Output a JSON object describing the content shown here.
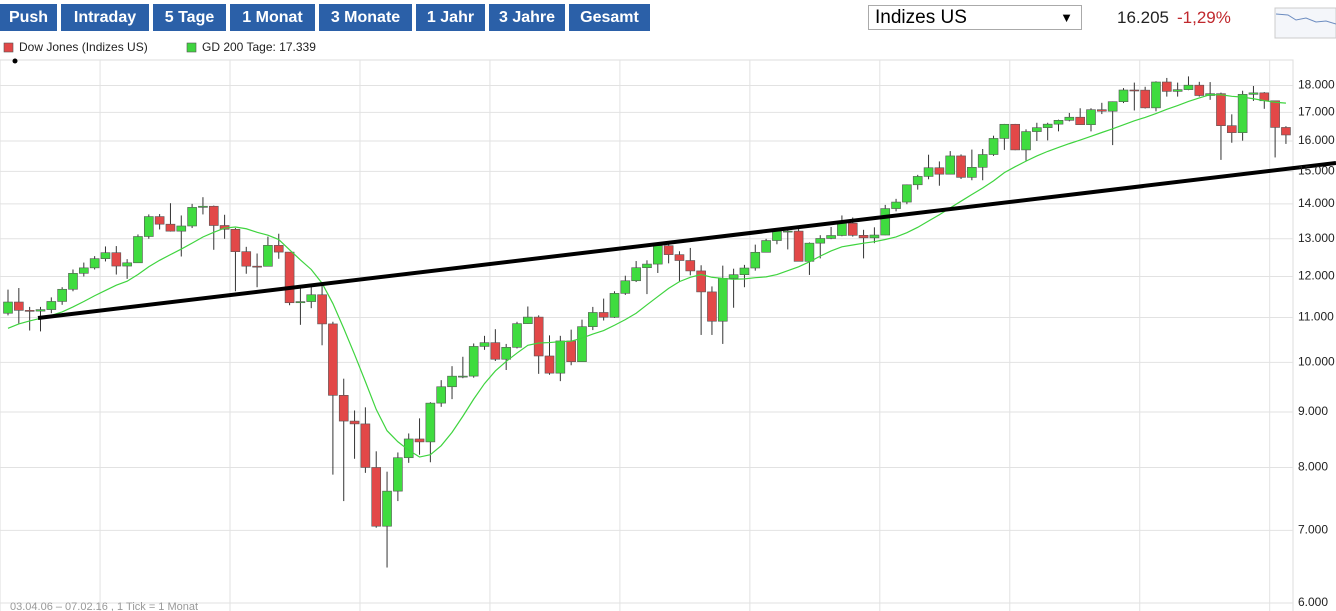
{
  "toolbar": {
    "buttons": [
      "Push",
      "Intraday",
      "5 Tage",
      "1 Monat",
      "3 Monate",
      "1 Jahr",
      "3 Jahre",
      "Gesamt"
    ]
  },
  "selector": {
    "value": "Indizes US"
  },
  "quote": {
    "price": "16.205",
    "change": "-1,29%"
  },
  "chart_data": {
    "type": "candlestick",
    "name": "Dow Jones (Indizes US)",
    "color_up": "#3fdc3f",
    "color_down": "#e24848",
    "caption": "03.04.06 – 07.02.16 , 1 Tick = 1 Monat",
    "log_scale": true,
    "grid": true,
    "ylim": [
      5950,
      19000
    ],
    "yticks": [
      {
        "value": 6000,
        "label": "6.000"
      },
      {
        "value": 7000,
        "label": "7.000"
      },
      {
        "value": 8000,
        "label": "8.000"
      },
      {
        "value": 9000,
        "label": "9.000"
      },
      {
        "value": 10000,
        "label": "10.000"
      },
      {
        "value": 11000,
        "label": "11.000"
      },
      {
        "value": 12000,
        "label": "12.000"
      },
      {
        "value": 13000,
        "label": "13.000"
      },
      {
        "value": 14000,
        "label": "14.000"
      },
      {
        "value": 15000,
        "label": "15.000"
      },
      {
        "value": 16000,
        "label": "16.000"
      },
      {
        "value": 17000,
        "label": "17.000"
      },
      {
        "value": 18000,
        "label": "18.000"
      }
    ],
    "open": [
      11100,
      11367,
      11168,
      11150,
      11186,
      11381,
      11679,
      12081,
      12222,
      12463,
      12622,
      12269,
      12354,
      13063,
      13628,
      13409,
      13212,
      13358,
      13896,
      13930,
      13372,
      13265,
      12650,
      12266,
      12263,
      12820,
      12638,
      11350,
      11378,
      11544,
      10851,
      9325,
      8829,
      8776,
      8001,
      7063,
      7609,
      8168,
      8500,
      8447,
      9172,
      9496,
      9712,
      9713,
      10345,
      10428,
      10067,
      10325,
      10857,
      11009,
      10137,
      9774,
      10466,
      10015,
      10788,
      11118,
      11006,
      11578,
      11892,
      12226,
      12320,
      12811,
      12570,
      12414,
      12143,
      11614,
      10913,
      11955,
      12046,
      12218,
      12633,
      12952,
      13212,
      13214,
      12393,
      12880,
      13009,
      13091,
      13437,
      13096,
      13026,
      13104,
      13861,
      14054,
      14579,
      14840,
      15116,
      14910,
      15500,
      14810,
      15130,
      15546,
      16086,
      16577,
      15699,
      16322,
      16458,
      16581,
      16717,
      16827,
      16563,
      17098,
      17043,
      17391,
      17828,
      17823,
      17165,
      18133,
      17776,
      17841,
      18011,
      17620,
      17690,
      16528,
      16285,
      17664,
      17720,
      17425,
      16466
    ],
    "high": [
      11670,
      11710,
      11250,
      11250,
      11480,
      11730,
      12180,
      12360,
      12530,
      12790,
      12800,
      12450,
      13120,
      13690,
      13700,
      14020,
      13660,
      14000,
      14200,
      13950,
      13680,
      13300,
      12780,
      12600,
      13060,
      13140,
      12640,
      11750,
      11800,
      11790,
      10900,
      9660,
      9030,
      9090,
      8280,
      7930,
      8260,
      8600,
      8880,
      9190,
      9630,
      9920,
      10120,
      10410,
      10580,
      10730,
      10400,
      10900,
      11260,
      11050,
      10590,
      10580,
      10720,
      10950,
      11250,
      11450,
      11630,
      12020,
      12400,
      12420,
      12880,
      12880,
      12660,
      12750,
      12290,
      11750,
      12280,
      12200,
      12300,
      12840,
      13000,
      13300,
      13340,
      13340,
      12900,
      13100,
      13330,
      13660,
      13600,
      13250,
      13320,
      13970,
      14150,
      14590,
      14890,
      15540,
      15320,
      15660,
      15550,
      15710,
      15730,
      16180,
      16590,
      16590,
      16400,
      16630,
      16630,
      16740,
      16980,
      17150,
      17150,
      17350,
      17400,
      17900,
      18110,
      17950,
      18160,
      18290,
      18110,
      18350,
      18140,
      18130,
      17730,
      16930,
      17800,
      17980,
      17750,
      17420,
      16510
    ],
    "low": [
      11050,
      10860,
      10700,
      10680,
      11100,
      11300,
      11630,
      12000,
      12180,
      12390,
      12050,
      11940,
      12350,
      13000,
      13260,
      13200,
      12520,
      13300,
      13690,
      12700,
      13000,
      11630,
      12070,
      11730,
      12260,
      12460,
      11290,
      10830,
      11220,
      10370,
      7880,
      7450,
      8150,
      7910,
      7040,
      6470,
      7450,
      8080,
      8220,
      8090,
      9100,
      9250,
      9670,
      9680,
      10270,
      10030,
      9840,
      10300,
      10850,
      9760,
      9740,
      9610,
      9940,
      10010,
      10710,
      10930,
      10990,
      11540,
      11860,
      11560,
      12090,
      12340,
      11860,
      12030,
      10600,
      10600,
      10400,
      11230,
      11730,
      12150,
      12630,
      12850,
      12710,
      12390,
      12040,
      12470,
      12990,
      13070,
      13060,
      12470,
      12880,
      13100,
      13780,
      13990,
      14430,
      14750,
      14550,
      14900,
      14760,
      14720,
      14720,
      15500,
      15700,
      15690,
      15340,
      16000,
      16020,
      16330,
      16680,
      16560,
      16330,
      16940,
      15860,
      17340,
      17070,
      17140,
      17040,
      17580,
      17580,
      17820,
      17580,
      17460,
      15370,
      15940,
      16010,
      17420,
      17130,
      15450,
      15900
    ],
    "close": [
      11367,
      11168,
      11150,
      11186,
      11381,
      11679,
      12081,
      12222,
      12463,
      12622,
      12269,
      12354,
      13063,
      13628,
      13409,
      13212,
      13358,
      13896,
      13930,
      13372,
      13265,
      12650,
      12266,
      12263,
      12820,
      12638,
      11350,
      11378,
      11544,
      10851,
      9325,
      8829,
      8776,
      8001,
      7063,
      7609,
      8168,
      8500,
      8447,
      9172,
      9496,
      9712,
      9713,
      10345,
      10428,
      10067,
      10325,
      10857,
      11009,
      10137,
      9774,
      10466,
      10015,
      10788,
      11118,
      11006,
      11578,
      11892,
      12226,
      12320,
      12811,
      12570,
      12414,
      12143,
      11614,
      10913,
      11955,
      12046,
      12218,
      12633,
      12952,
      13212,
      13214,
      12393,
      12880,
      13009,
      13091,
      13437,
      13096,
      13026,
      13104,
      13861,
      14054,
      14579,
      14840,
      15116,
      14910,
      15500,
      14810,
      15130,
      15546,
      16086,
      16577,
      15699,
      16322,
      16458,
      16581,
      16717,
      16827,
      16563,
      17098,
      17043,
      17391,
      17828,
      17823,
      17165,
      18133,
      17776,
      17841,
      18011,
      17620,
      17690,
      16528,
      16285,
      17664,
      17720,
      17425,
      16466,
      16205
    ],
    "ma": {
      "name": "GD 200 Tage: 17.339",
      "color": "#3fd43f",
      "values": [
        10750,
        10850,
        10920,
        10980,
        11050,
        11130,
        11250,
        11380,
        11520,
        11650,
        11780,
        11880,
        12050,
        12250,
        12420,
        12570,
        12720,
        12880,
        13050,
        13180,
        13300,
        13330,
        13280,
        13180,
        13100,
        12980,
        12700,
        12430,
        12180,
        11830,
        11330,
        10750,
        10170,
        9600,
        9050,
        8650,
        8450,
        8300,
        8180,
        8220,
        8380,
        8620,
        8920,
        9250,
        9560,
        9820,
        10020,
        10200,
        10370,
        10420,
        10430,
        10450,
        10460,
        10530,
        10620,
        10700,
        10820,
        10950,
        11100,
        11300,
        11500,
        11700,
        11870,
        11980,
        12050,
        11980,
        11950,
        11930,
        11940,
        11970,
        11990,
        12050,
        12150,
        12250,
        12380,
        12530,
        12670,
        12780,
        12830,
        12880,
        12920,
        12980,
        13050,
        13170,
        13320,
        13500,
        13680,
        13880,
        14080,
        14280,
        14480,
        14700,
        14960,
        15150,
        15330,
        15500,
        15650,
        15780,
        15910,
        16030,
        16160,
        16290,
        16420,
        16560,
        16700,
        16820,
        16960,
        17110,
        17250,
        17400,
        17530,
        17650,
        17650,
        17590,
        17560,
        17500,
        17430,
        17370,
        17339
      ]
    }
  }
}
